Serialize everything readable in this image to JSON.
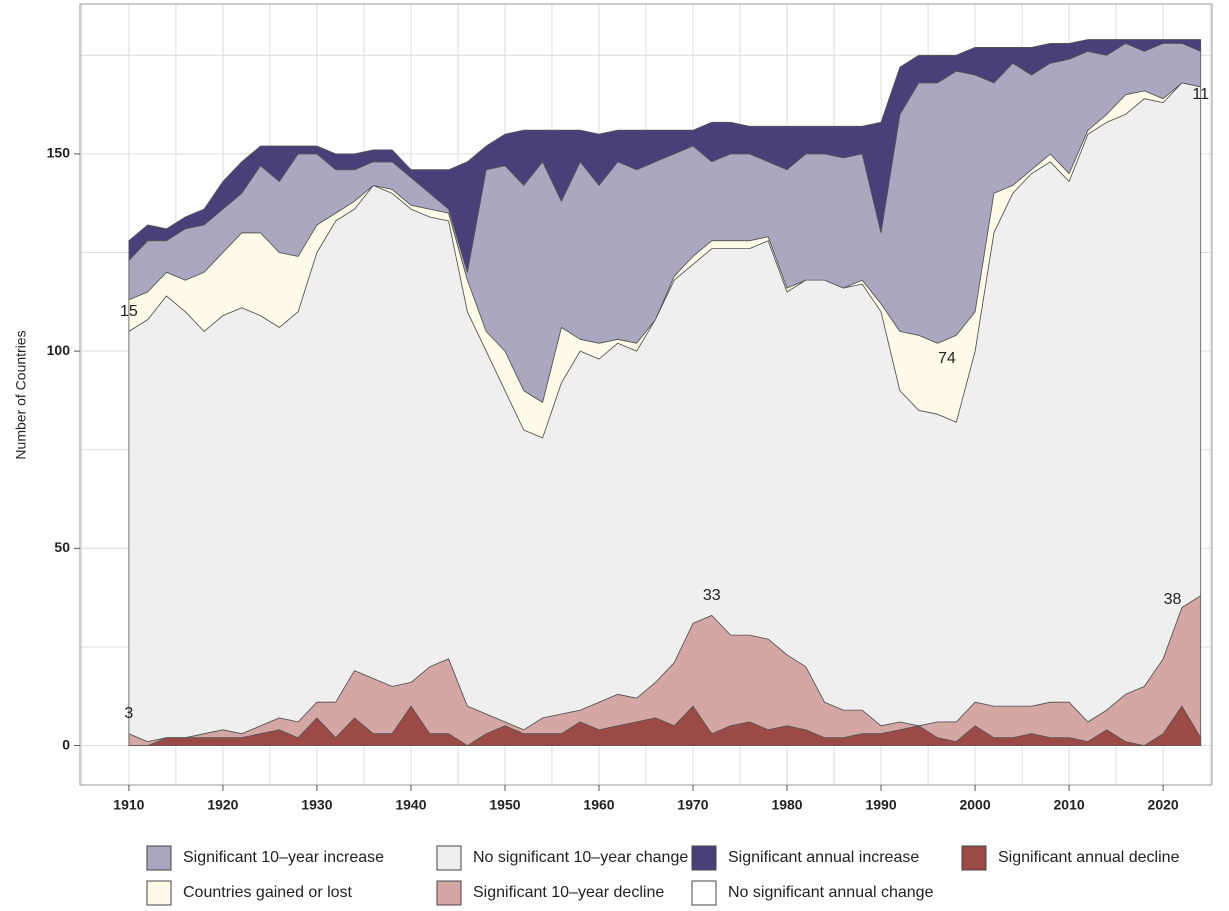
{
  "chart_data": {
    "type": "stacked_area",
    "y_label": "Number of Countries",
    "xlim": [
      1904.8,
      2025.2
    ],
    "ylim": [
      -10,
      188
    ],
    "xticks": [
      1910,
      1920,
      1930,
      1940,
      1950,
      1960,
      1970,
      1980,
      1990,
      2000,
      2010,
      2020
    ],
    "yticks": [
      0,
      50,
      100,
      150
    ],
    "xminor": [
      1905,
      1915,
      1925,
      1935,
      1945,
      1955,
      1965,
      1975,
      1985,
      1995,
      2005,
      2015,
      2025
    ],
    "yminor": [
      25,
      75,
      125,
      175
    ],
    "grid": true,
    "x": [
      1910,
      1912,
      1914,
      1916,
      1918,
      1920,
      1922,
      1924,
      1926,
      1928,
      1930,
      1932,
      1934,
      1936,
      1938,
      1940,
      1942,
      1944,
      1946,
      1948,
      1950,
      1952,
      1954,
      1956,
      1958,
      1960,
      1962,
      1964,
      1966,
      1968,
      1970,
      1972,
      1974,
      1976,
      1978,
      1980,
      1982,
      1984,
      1986,
      1988,
      1990,
      1992,
      1994,
      1996,
      1998,
      2000,
      2002,
      2004,
      2006,
      2008,
      2010,
      2012,
      2014,
      2016,
      2018,
      2020,
      2022,
      2024
    ],
    "series": [
      {
        "name": "Significant 10–year decline",
        "color": "#d4a7a5",
        "stack": true,
        "values": [
          3,
          1,
          2,
          2,
          3,
          4,
          3,
          5,
          7,
          6,
          11,
          11,
          19,
          17,
          15,
          16,
          20,
          22,
          10,
          8,
          6,
          4,
          7,
          8,
          9,
          11,
          13,
          12,
          16,
          21,
          31,
          33,
          28,
          28,
          27,
          23,
          20,
          11,
          9,
          9,
          5,
          6,
          5,
          6,
          6,
          11,
          10,
          10,
          10,
          11,
          11,
          6,
          9,
          13,
          15,
          22,
          35,
          38
        ]
      },
      {
        "name": "No significant 10–year change",
        "color": "#efefef",
        "stack": true,
        "values": [
          102,
          107,
          112,
          108,
          102,
          105,
          108,
          104,
          99,
          104,
          114,
          122,
          117,
          125,
          125,
          120,
          114,
          111,
          100,
          92,
          84,
          76,
          71,
          84,
          91,
          87,
          89,
          88,
          92,
          97,
          91,
          93,
          98,
          98,
          101,
          92,
          98,
          107,
          107,
          108,
          105,
          84,
          80,
          78,
          76,
          89,
          120,
          130,
          135,
          137,
          132,
          149,
          149,
          147,
          149,
          141,
          133,
          129
        ]
      },
      {
        "name": "Countries gained or lost",
        "color": "#fffbe8",
        "stack": true,
        "values": [
          8,
          7,
          6,
          8,
          15,
          16,
          19,
          21,
          19,
          14,
          7,
          2,
          2,
          0,
          1,
          1,
          2,
          2,
          8,
          5,
          10,
          10,
          9,
          14,
          3,
          4,
          1,
          2,
          0,
          1,
          2,
          2,
          2,
          2,
          1,
          1,
          0,
          0,
          0,
          1,
          2,
          15,
          19,
          18,
          22,
          10,
          10,
          2,
          1,
          2,
          2,
          1,
          2,
          5,
          2,
          1,
          0,
          0
        ]
      },
      {
        "name": "Significant 10–year increase",
        "color": "#aaa8c0",
        "stack": true,
        "values": [
          10,
          13,
          8,
          13,
          12,
          11,
          10,
          17,
          18,
          26,
          18,
          11,
          8,
          6,
          7,
          7,
          4,
          1,
          2,
          41,
          47,
          52,
          61,
          32,
          45,
          40,
          45,
          44,
          40,
          31,
          28,
          20,
          22,
          22,
          19,
          30,
          32,
          32,
          33,
          32,
          18,
          55,
          64,
          66,
          67,
          60,
          28,
          31,
          24,
          23,
          29,
          20,
          15,
          13,
          10,
          14,
          10,
          9
        ]
      },
      {
        "name": "Significant annual increase",
        "color": "#4b3f7a",
        "stack": true,
        "values": [
          5,
          4,
          3,
          3,
          4,
          7,
          8,
          5,
          9,
          2,
          2,
          4,
          4,
          3,
          3,
          2,
          6,
          10,
          28,
          6,
          8,
          14,
          8,
          18,
          8,
          13,
          8,
          10,
          8,
          6,
          4,
          10,
          8,
          7,
          9,
          11,
          7,
          7,
          8,
          7,
          28,
          12,
          7,
          7,
          4,
          7,
          9,
          4,
          7,
          5,
          4,
          3,
          4,
          1,
          3,
          1,
          1,
          3
        ]
      },
      {
        "name": "Significant annual decline",
        "color": "#9b4a45",
        "stack": false,
        "values": [
          0,
          0,
          2,
          2,
          2,
          2,
          2,
          3,
          4,
          2,
          7,
          2,
          7,
          3,
          3,
          10,
          3,
          3,
          0,
          3,
          5,
          3,
          3,
          3,
          6,
          4,
          5,
          6,
          7,
          5,
          10,
          3,
          5,
          6,
          4,
          5,
          4,
          2,
          2,
          3,
          3,
          4,
          5,
          2,
          1,
          5,
          2,
          2,
          3,
          2,
          2,
          1,
          4,
          1,
          0,
          3,
          10,
          2
        ]
      }
    ],
    "legend_extra": {
      "name": "No significant annual change",
      "color": "#ffffff"
    },
    "annotations": [
      {
        "label": "15",
        "x": 1910,
        "y": 110
      },
      {
        "label": "74",
        "x": 1997,
        "y": 98
      },
      {
        "label": "11",
        "x": 2024,
        "y": 165
      },
      {
        "label": "33",
        "x": 1972,
        "y": 38
      },
      {
        "label": "38",
        "x": 2021,
        "y": 37
      },
      {
        "label": "3",
        "x": 1910,
        "y": 8
      }
    ]
  }
}
